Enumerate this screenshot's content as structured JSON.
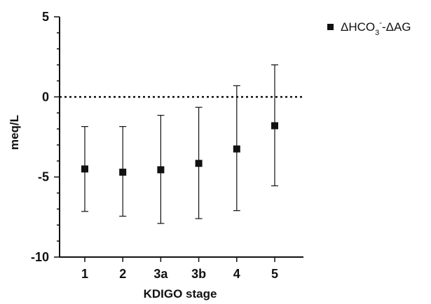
{
  "chart_data": {
    "type": "scatter",
    "xlabel": "KDIGO stage",
    "ylabel": "meq/L",
    "categories": [
      "1",
      "2",
      "3a",
      "3b",
      "4",
      "5"
    ],
    "ylim": [
      -10,
      5
    ],
    "yticks": [
      -10,
      -5,
      0,
      5
    ],
    "reference_line": 0,
    "legend_position": "top-right",
    "series": [
      {
        "legend_parts": [
          "ΔHCO",
          "3",
          "-",
          "-ΔAG"
        ],
        "color": "#111111",
        "marker": "square",
        "values": [
          -4.5,
          -4.7,
          -4.55,
          -4.15,
          -3.25,
          -1.8
        ],
        "error_lower": [
          -7.15,
          -7.45,
          -7.9,
          -7.6,
          -7.1,
          -5.55
        ],
        "error_upper": [
          -1.85,
          -1.85,
          -1.15,
          -0.65,
          0.7,
          2.0
        ]
      }
    ]
  }
}
